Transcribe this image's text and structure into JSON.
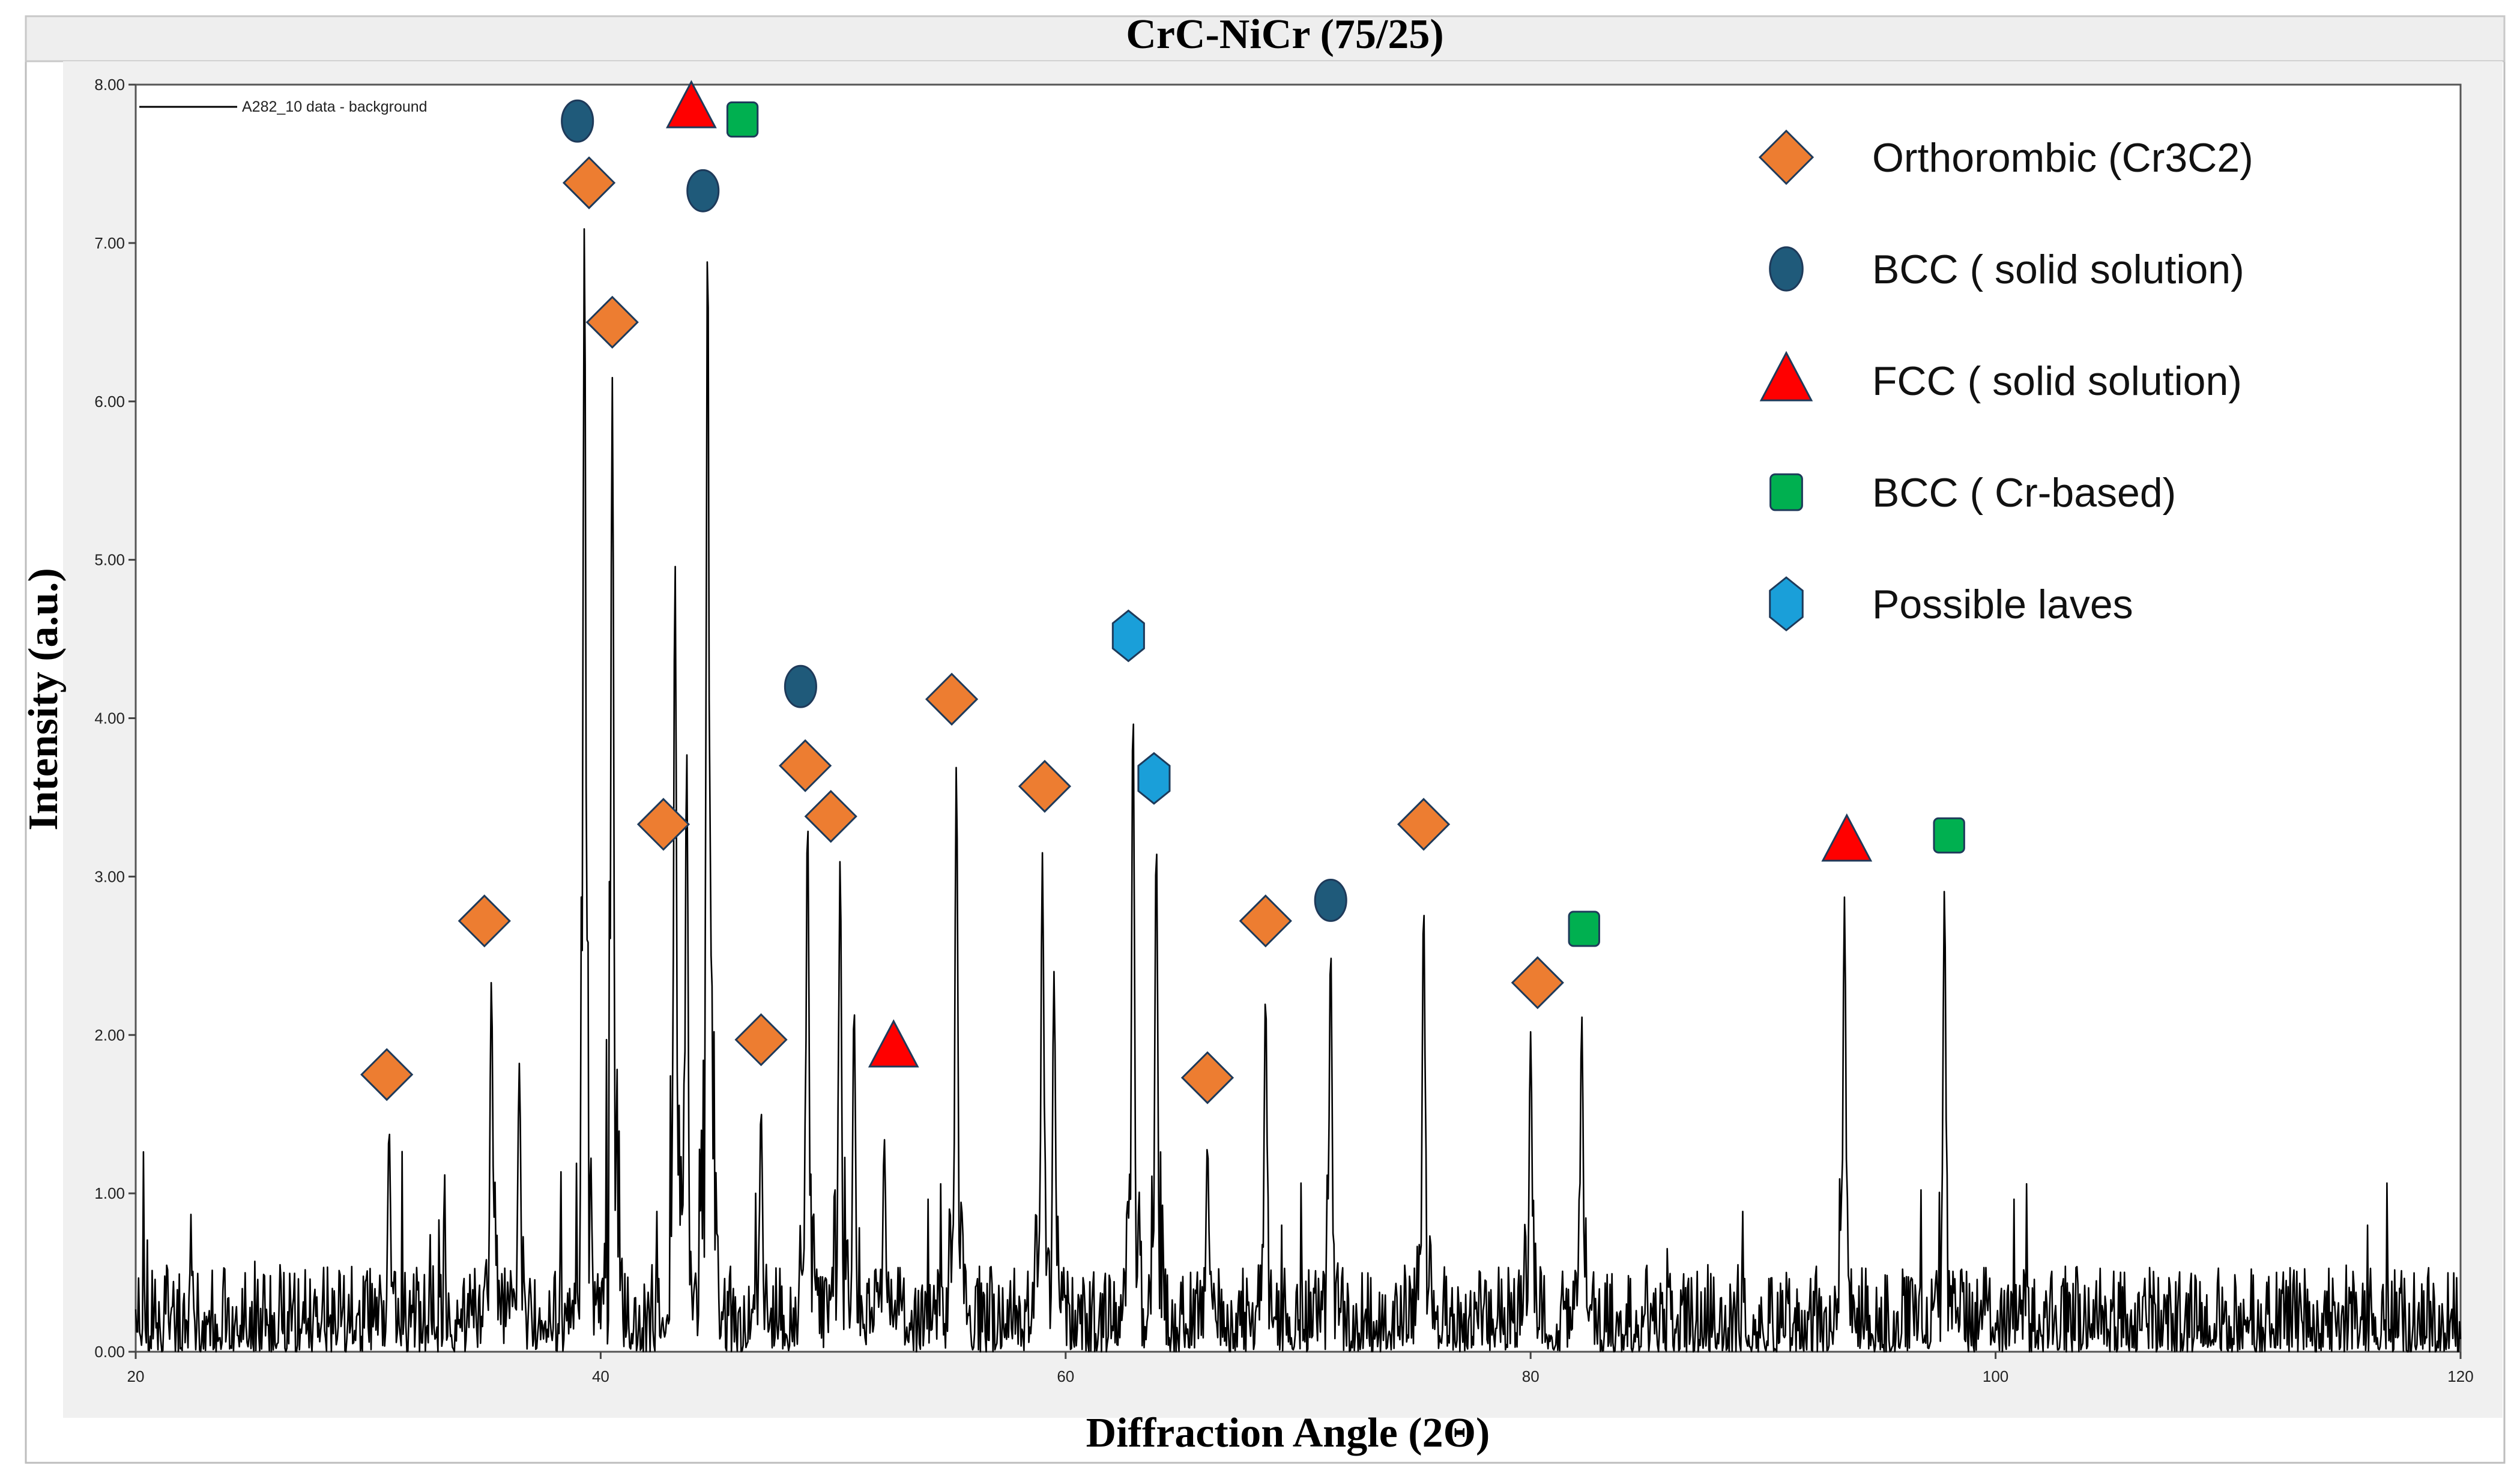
{
  "chart_data": {
    "type": "line",
    "title": "CrC-NiCr (75/25)",
    "xlabel": "Diffraction Angle (2Θ)",
    "ylabel": "Intensity (a.u.)",
    "xlim": [
      20,
      120
    ],
    "ylim": [
      0,
      8
    ],
    "x_ticks": [
      20,
      40,
      60,
      80,
      100,
      120
    ],
    "x_tick_labels": [
      "20",
      "40",
      "60",
      "80",
      "100",
      "120"
    ],
    "y_ticks": [
      0,
      1,
      2,
      3,
      4,
      5,
      6,
      7,
      8
    ],
    "y_tick_labels": [
      "0.00",
      "1.00",
      "2.00",
      "3.00",
      "4.00",
      "5.00",
      "6.00",
      "7.00",
      "8.00"
    ],
    "series_legend": "A282_10 data - background",
    "noise_level": 0.55,
    "peaks": [
      {
        "x": 30.9,
        "y": 1.42
      },
      {
        "x": 35.3,
        "y": 2.35
      },
      {
        "x": 36.5,
        "y": 1.82
      },
      {
        "x": 39.3,
        "y": 7.15
      },
      {
        "x": 40.5,
        "y": 6.15
      },
      {
        "x": 43.2,
        "y": 5.0
      },
      {
        "x": 43.7,
        "y": 3.8
      },
      {
        "x": 44.6,
        "y": 7.12
      },
      {
        "x": 46.9,
        "y": 1.55
      },
      {
        "x": 48.9,
        "y": 3.4
      },
      {
        "x": 50.3,
        "y": 3.12
      },
      {
        "x": 50.9,
        "y": 2.2
      },
      {
        "x": 52.2,
        "y": 1.35
      },
      {
        "x": 55.3,
        "y": 3.72
      },
      {
        "x": 59.0,
        "y": 3.15
      },
      {
        "x": 59.5,
        "y": 2.4
      },
      {
        "x": 62.9,
        "y": 4.1
      },
      {
        "x": 63.9,
        "y": 3.25
      },
      {
        "x": 66.1,
        "y": 1.32
      },
      {
        "x": 68.6,
        "y": 2.27
      },
      {
        "x": 71.4,
        "y": 2.57
      },
      {
        "x": 75.4,
        "y": 2.85
      },
      {
        "x": 80.0,
        "y": 2.02
      },
      {
        "x": 82.2,
        "y": 2.13
      },
      {
        "x": 93.5,
        "y": 2.87
      },
      {
        "x": 97.8,
        "y": 2.93
      }
    ],
    "markers": [
      {
        "phase": "orthorhombic",
        "x": 30.8,
        "y": 1.75
      },
      {
        "phase": "orthorhombic",
        "x": 35.0,
        "y": 2.72
      },
      {
        "phase": "orthorhombic",
        "x": 39.5,
        "y": 7.38
      },
      {
        "phase": "orthorhombic",
        "x": 40.5,
        "y": 6.5
      },
      {
        "phase": "orthorhombic",
        "x": 42.7,
        "y": 3.33
      },
      {
        "phase": "orthorhombic",
        "x": 46.9,
        "y": 1.97
      },
      {
        "phase": "orthorhombic",
        "x": 48.8,
        "y": 3.7
      },
      {
        "phase": "orthorhombic",
        "x": 49.9,
        "y": 3.38
      },
      {
        "phase": "orthorhombic",
        "x": 55.1,
        "y": 4.12
      },
      {
        "phase": "orthorhombic",
        "x": 59.1,
        "y": 3.57
      },
      {
        "phase": "orthorhombic",
        "x": 66.1,
        "y": 1.73
      },
      {
        "phase": "orthorhombic",
        "x": 68.6,
        "y": 2.72
      },
      {
        "phase": "orthorhombic",
        "x": 75.4,
        "y": 3.33
      },
      {
        "phase": "orthorhombic",
        "x": 80.3,
        "y": 2.33
      },
      {
        "phase": "bcc_solid",
        "x": 39.0,
        "y": 7.77
      },
      {
        "phase": "bcc_solid",
        "x": 44.4,
        "y": 7.33
      },
      {
        "phase": "bcc_solid",
        "x": 48.6,
        "y": 4.2
      },
      {
        "phase": "bcc_solid",
        "x": 71.4,
        "y": 2.85
      },
      {
        "phase": "fcc",
        "x": 43.9,
        "y": 7.85
      },
      {
        "phase": "fcc",
        "x": 52.6,
        "y": 1.92
      },
      {
        "phase": "fcc",
        "x": 93.6,
        "y": 3.22
      },
      {
        "phase": "bcc_cr",
        "x": 46.1,
        "y": 7.78
      },
      {
        "phase": "bcc_cr",
        "x": 82.3,
        "y": 2.67
      },
      {
        "phase": "bcc_cr",
        "x": 98.0,
        "y": 3.26
      },
      {
        "phase": "laves",
        "x": 62.7,
        "y": 4.52
      },
      {
        "phase": "laves",
        "x": 63.8,
        "y": 3.62
      }
    ],
    "legend": [
      {
        "phase": "orthorhombic",
        "label": "Orthorombic (Cr3C2)"
      },
      {
        "phase": "bcc_solid",
        "label": "BCC ( solid solution)"
      },
      {
        "phase": "fcc",
        "label": "FCC ( solid solution)"
      },
      {
        "phase": "bcc_cr",
        "label": "BCC ( Cr-based)"
      },
      {
        "phase": "laves",
        "label": "Possible laves"
      }
    ],
    "colors": {
      "orthorhombic": "#ed7d31",
      "bcc_solid": "#1f5a7a",
      "fcc": "#ff0000",
      "bcc_cr": "#00b050",
      "laves": "#1a9fd9"
    }
  }
}
